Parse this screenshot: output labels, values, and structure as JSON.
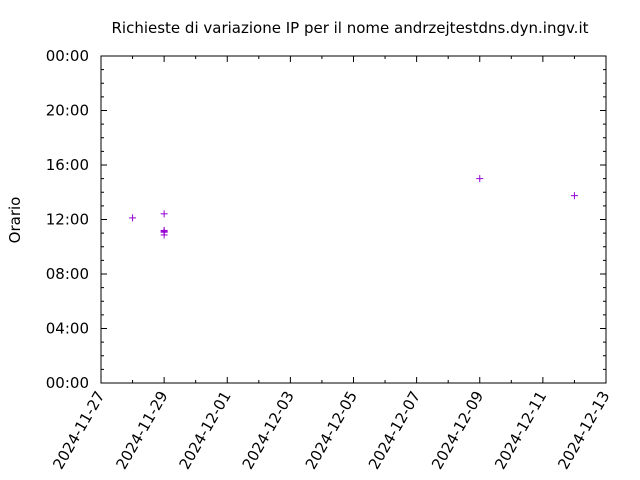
{
  "chart_data": {
    "type": "scatter",
    "title": "Richieste di variazione IP per il nome andrzejtestdns.dyn.ingv.it",
    "xlabel": "",
    "ylabel": "Orario",
    "x_axis": {
      "type": "date",
      "range": [
        "2024-11-27",
        "2024-12-13"
      ],
      "tick_labels": [
        "2024-11-27",
        "2024-11-29",
        "2024-12-01",
        "2024-12-03",
        "2024-12-05",
        "2024-12-07",
        "2024-12-09",
        "2024-12-11",
        "2024-12-13"
      ]
    },
    "y_axis": {
      "type": "time-of-day",
      "range": [
        "00:00",
        "24:00"
      ],
      "tick_labels": [
        "00:00",
        "04:00",
        "08:00",
        "12:00",
        "16:00",
        "20:00",
        "00:00"
      ]
    },
    "grid": false,
    "marker": "+",
    "color": "#9400d3",
    "points": [
      {
        "x": "2024-11-28",
        "y": "12:07"
      },
      {
        "x": "2024-11-29",
        "y": "12:25"
      },
      {
        "x": "2024-11-29",
        "y": "11:12"
      },
      {
        "x": "2024-11-29",
        "y": "11:08"
      },
      {
        "x": "2024-11-29",
        "y": "11:04"
      },
      {
        "x": "2024-11-29",
        "y": "10:52"
      },
      {
        "x": "2024-12-09",
        "y": "15:00"
      },
      {
        "x": "2024-12-12",
        "y": "13:45"
      }
    ]
  }
}
